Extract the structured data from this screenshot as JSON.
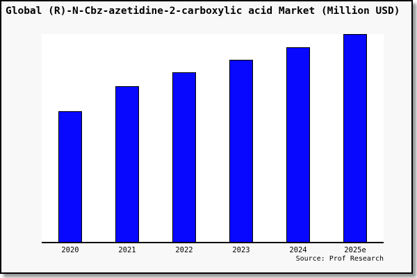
{
  "page": {
    "title": "Global (R)-N-Cbz-azetidine-2-carboxylic acid Market (Million USD)",
    "source_label": "Source: Prof Research"
  },
  "colors": {
    "background": "#f8f8f8",
    "plot_background": "#ffffff",
    "bar_fill": "#0808ff",
    "bar_border": "#000000",
    "frame_border": "#000000",
    "shadow": "#999999",
    "text": "#000000"
  },
  "chart_data": {
    "type": "bar",
    "title": "Global (R)-N-Cbz-azetidine-2-carboxylic acid Market (Million USD)",
    "categories": [
      "2020",
      "2021",
      "2022",
      "2023",
      "2024",
      "2025e"
    ],
    "values": [
      62.8,
      75.0,
      81.6,
      87.6,
      93.8,
      100.0
    ],
    "values_note": "y-axis has no tick labels; values are relative bar heights indexed to 2025e = 100",
    "xlabel": "",
    "ylabel": "",
    "ylim": [
      0,
      100
    ],
    "grid": false,
    "legend": "none",
    "source": "Source: Prof Research"
  }
}
